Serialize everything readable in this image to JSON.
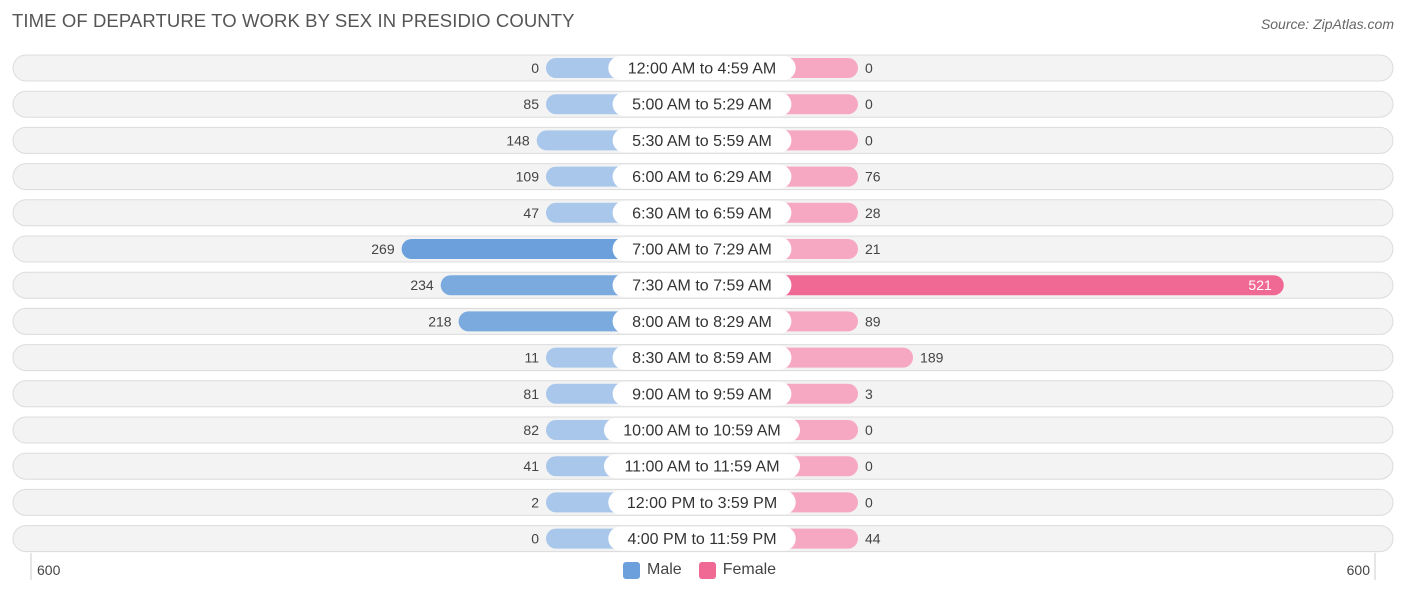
{
  "title": "TIME OF DEPARTURE TO WORK BY SEX IN PRESIDIO COUNTY",
  "source": "Source: ZipAtlas.com",
  "colors": {
    "male_light": "#a9c7ea",
    "male_dark": "#6ba0dc",
    "female_light": "#f6a8c2",
    "female_dark": "#f06994",
    "row_bg": "#f3f3f3",
    "row_border": "#dcdcdc"
  },
  "legend": {
    "male": "Male",
    "female": "Female"
  },
  "axis": {
    "left_label": "600",
    "right_label": "600"
  },
  "chart_data": {
    "type": "bar",
    "orientation": "horizontal-diverging",
    "title": "TIME OF DEPARTURE TO WORK BY SEX IN PRESIDIO COUNTY",
    "xlim": [
      -600,
      600
    ],
    "categories": [
      "12:00 AM to 4:59 AM",
      "5:00 AM to 5:29 AM",
      "5:30 AM to 5:59 AM",
      "6:00 AM to 6:29 AM",
      "6:30 AM to 6:59 AM",
      "7:00 AM to 7:29 AM",
      "7:30 AM to 7:59 AM",
      "8:00 AM to 8:29 AM",
      "8:30 AM to 8:59 AM",
      "9:00 AM to 9:59 AM",
      "10:00 AM to 10:59 AM",
      "11:00 AM to 11:59 AM",
      "12:00 PM to 3:59 PM",
      "4:00 PM to 11:59 PM"
    ],
    "series": [
      {
        "name": "Male",
        "values": [
          0,
          85,
          148,
          109,
          47,
          269,
          234,
          218,
          11,
          81,
          82,
          41,
          2,
          0
        ]
      },
      {
        "name": "Female",
        "values": [
          0,
          0,
          0,
          76,
          28,
          21,
          521,
          89,
          189,
          3,
          0,
          0,
          0,
          44
        ]
      }
    ]
  }
}
